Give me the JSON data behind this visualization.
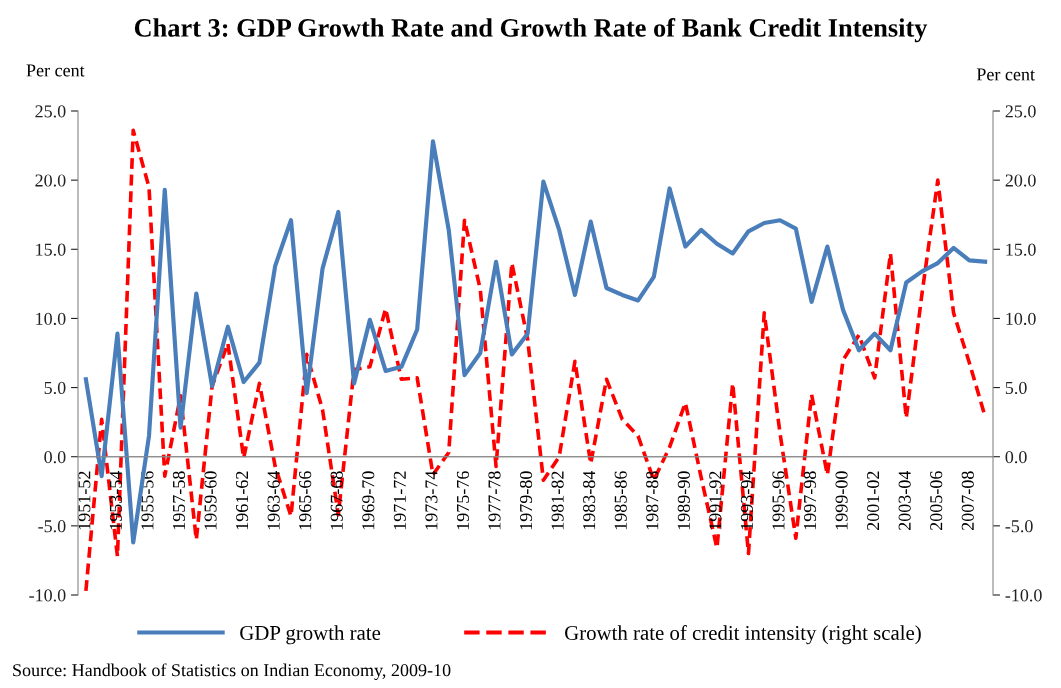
{
  "chart_data": {
    "type": "line",
    "title": "Chart 3: GDP Growth Rate and Growth Rate of Bank Credit Intensity",
    "ylabel": "Per cent",
    "y2label": "Per cent",
    "categories": [
      "1951-52",
      null,
      "1953-54",
      null,
      "1955-56",
      null,
      "1957-58",
      null,
      "1959-60",
      null,
      "1961-62",
      null,
      "1963-64",
      null,
      "1965-66",
      null,
      "1967-68",
      null,
      "1969-70",
      null,
      "1971-72",
      null,
      "1973-74",
      null,
      "1975-76",
      null,
      "1977-78",
      null,
      "1979-80",
      null,
      "1981-82",
      null,
      "1983-84",
      null,
      "1985-86",
      null,
      "1987-88",
      null,
      "1989-90",
      null,
      "1991-92",
      null,
      "1993-94",
      null,
      "1995-96",
      null,
      "1997-98",
      null,
      "1999-00",
      null,
      "2001-02",
      null,
      "2003-04",
      null,
      "2005-06",
      null,
      "2007-08",
      null
    ],
    "series": [
      {
        "name": "GDP growth rate",
        "color": "#4a7ebb",
        "line_style": "solid",
        "values": [
          5.6,
          -1.4,
          8.9,
          -6.2,
          1.5,
          19.3,
          2.1,
          11.8,
          5.1,
          9.4,
          5.4,
          6.8,
          13.8,
          17.1,
          4.6,
          13.6,
          17.7,
          5.3,
          9.9,
          6.2,
          6.5,
          9.2,
          22.8,
          16.4,
          5.9,
          7.5,
          14.1,
          7.4,
          8.9,
          19.9,
          16.4,
          11.7,
          17.0,
          12.2,
          11.7,
          11.3,
          13.0,
          19.4,
          15.2,
          16.4,
          15.4,
          14.7,
          16.3,
          16.9,
          17.1,
          16.5,
          11.2,
          15.2,
          10.6,
          7.7,
          8.9,
          7.7,
          12.6,
          13.4,
          14.0,
          15.1,
          14.2,
          14.1
        ]
      },
      {
        "name": "Growth rate of credit intensity (right scale)",
        "color": "#ff0000",
        "line_style": "dashed",
        "axis": "y2",
        "values": [
          -9.7,
          2.7,
          -7.2,
          23.6,
          19.5,
          -1.4,
          4.4,
          -6.0,
          5.1,
          8.2,
          -0.1,
          5.3,
          -0.7,
          -4.3,
          7.4,
          3.4,
          -4.2,
          6.3,
          6.5,
          10.7,
          5.6,
          5.7,
          -1.3,
          0.3,
          17.1,
          12.1,
          -0.7,
          14.0,
          8.5,
          -1.7,
          0.0,
          6.9,
          -0.5,
          5.6,
          2.7,
          1.5,
          -1.7,
          0.7,
          3.9,
          -1.5,
          -6.6,
          5.3,
          -7.0,
          10.4,
          1.7,
          -5.9,
          4.5,
          -1.3,
          7.0,
          8.8,
          5.7,
          14.7,
          2.8,
          11.8,
          20.0,
          10.4,
          6.8,
          2.9
        ]
      }
    ],
    "ylim": [
      -10,
      25
    ],
    "yticks": [
      {
        "value": -10,
        "label": "-10.0"
      },
      {
        "value": -5,
        "label": "-5.0"
      },
      {
        "value": 0,
        "label": "0.0"
      },
      {
        "value": 5,
        "label": "5.0"
      },
      {
        "value": 10,
        "label": "10.0"
      },
      {
        "value": 15,
        "label": "15.0"
      },
      {
        "value": 20,
        "label": "20.0"
      },
      {
        "value": 25,
        "label": "25.0"
      }
    ],
    "y2lim": [
      -10,
      25
    ],
    "y2ticks": [
      {
        "value": -10,
        "label": "-10.0"
      },
      {
        "value": -5,
        "label": "-5.0"
      },
      {
        "value": 0,
        "label": "0.0"
      },
      {
        "value": 5,
        "label": "5.0"
      },
      {
        "value": 10,
        "label": "10.0"
      },
      {
        "value": 15,
        "label": "15.0"
      },
      {
        "value": 20,
        "label": "20.0"
      },
      {
        "value": 25,
        "label": "25.0"
      }
    ],
    "legend": "bottom",
    "annotations": [
      "Source: Handbook of Statistics on Indian Economy, 2009-10"
    ]
  }
}
